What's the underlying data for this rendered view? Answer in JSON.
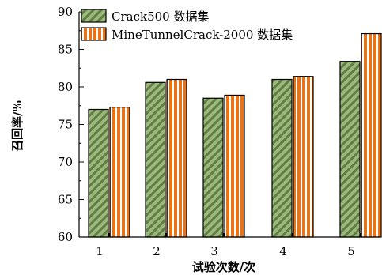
{
  "chart_data": {
    "type": "bar",
    "title": "",
    "xlabel": "试验次数/次",
    "ylabel": "召回率/%",
    "categories": [
      "1",
      "2",
      "3",
      "4",
      "5"
    ],
    "ylim": [
      60,
      90
    ],
    "yticks": [
      60,
      65,
      70,
      75,
      80,
      85,
      90
    ],
    "grid": false,
    "legend_position": "top-left",
    "series": [
      {
        "name": "Crack500 数据集",
        "values": [
          77.0,
          80.6,
          78.5,
          81.0,
          83.4
        ],
        "color": "#8aa86a",
        "pattern": "diagonal-hatch"
      },
      {
        "name": "MineTunnelCrack-2000 数据集",
        "values": [
          77.3,
          81.0,
          78.9,
          81.4,
          87.1
        ],
        "color": "#e8741a",
        "pattern": "vertical-stripe"
      }
    ]
  }
}
